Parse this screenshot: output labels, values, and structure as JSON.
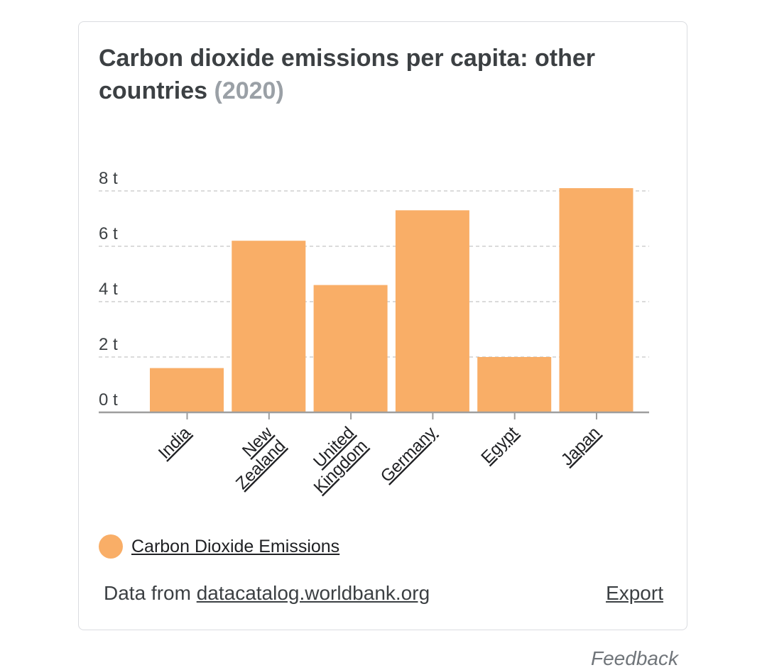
{
  "card": {
    "title": "Carbon dioxide emissions per capita: other countries",
    "year": "(2020)"
  },
  "chart_data": {
    "type": "bar",
    "categories": [
      "India",
      "New Zealand",
      "United Kingdom",
      "Germany",
      "Egypt",
      "Japan"
    ],
    "category_label_lines": [
      [
        "India"
      ],
      [
        "New",
        "Zealand"
      ],
      [
        "United",
        "Kingdom"
      ],
      [
        "Germany"
      ],
      [
        "Egypt"
      ],
      [
        "Japan"
      ]
    ],
    "series": [
      {
        "name": "Carbon Dioxide Emissions",
        "values": [
          1.6,
          6.2,
          4.6,
          7.3,
          2.0,
          8.1
        ],
        "color": "#f9ae67"
      }
    ],
    "yticks": [
      0,
      2,
      4,
      6,
      8
    ],
    "ytick_labels": [
      "0 t",
      "2 t",
      "4 t",
      "6 t",
      "8 t"
    ],
    "ylim": [
      0,
      8
    ],
    "grid": true
  },
  "legend": {
    "label": "Carbon Dioxide Emissions",
    "color": "#f9ae67"
  },
  "footer": {
    "prefix": "Data from ",
    "source_link": "datacatalog.worldbank.org",
    "export_label": "Export"
  },
  "feedback_label": "Feedback"
}
